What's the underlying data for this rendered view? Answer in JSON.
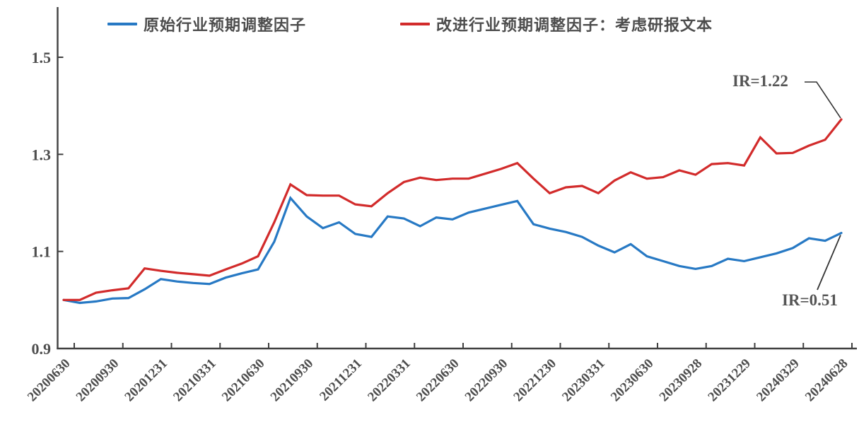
{
  "chart_data": {
    "type": "line",
    "title": "",
    "grid": false,
    "legend_position": "top-center",
    "x_axis": {
      "tick_labels": [
        "20200630",
        "20200930",
        "20201231",
        "20210331",
        "20210630",
        "20210930",
        "20211231",
        "20220331",
        "20220630",
        "20220930",
        "20221230",
        "20230331",
        "20230630",
        "20230928",
        "20231229",
        "20240329",
        "20240628"
      ],
      "points_between_ticks": 3,
      "total_points": 49,
      "label_rotation_deg": 45
    },
    "y_axis": {
      "tick_labels": [
        "0.9",
        "1.1",
        "1.3",
        "1.5"
      ],
      "ticks": [
        0.9,
        1.1,
        1.3,
        1.5
      ],
      "min": 0.9,
      "max": 1.5
    },
    "series": [
      {
        "name": "原始行业预期调整因子",
        "color": "#2779C4",
        "values": [
          1.0,
          0.994,
          0.997,
          1.003,
          1.004,
          1.022,
          1.043,
          1.038,
          1.035,
          1.033,
          1.046,
          1.055,
          1.063,
          1.12,
          1.21,
          1.172,
          1.148,
          1.16,
          1.136,
          1.13,
          1.172,
          1.168,
          1.152,
          1.17,
          1.166,
          1.18,
          1.188,
          1.196,
          1.204,
          1.156,
          1.147,
          1.14,
          1.13,
          1.112,
          1.098,
          1.115,
          1.09,
          1.08,
          1.07,
          1.064,
          1.07,
          1.085,
          1.08,
          1.088,
          1.096,
          1.107,
          1.127,
          1.122,
          1.138
        ]
      },
      {
        "name": "改进行业预期调整因子：考虑研报文本",
        "color": "#D22B2B",
        "values": [
          1.0,
          1.0,
          1.015,
          1.02,
          1.024,
          1.065,
          1.06,
          1.056,
          1.053,
          1.05,
          1.063,
          1.075,
          1.09,
          1.16,
          1.238,
          1.216,
          1.215,
          1.215,
          1.197,
          1.193,
          1.22,
          1.243,
          1.252,
          1.247,
          1.25,
          1.25,
          1.26,
          1.27,
          1.282,
          1.25,
          1.22,
          1.232,
          1.235,
          1.22,
          1.246,
          1.263,
          1.25,
          1.253,
          1.267,
          1.258,
          1.28,
          1.282,
          1.277,
          1.335,
          1.302,
          1.303,
          1.318,
          1.33,
          1.372
        ]
      }
    ],
    "annotations": [
      {
        "text": "IR=1.22",
        "attached_series": "改进行业预期调整因子：考虑研报文本",
        "series_index": 1,
        "attach": "last-point"
      },
      {
        "text": "IR=0.51",
        "attached_series": "原始行业预期调整因子",
        "series_index": 0,
        "attach": "last-point"
      }
    ],
    "colors": {
      "axis": "#404040",
      "tick_text": "#4d4d4d",
      "annotation_text": "#555555",
      "leader_line": "#333333"
    }
  }
}
